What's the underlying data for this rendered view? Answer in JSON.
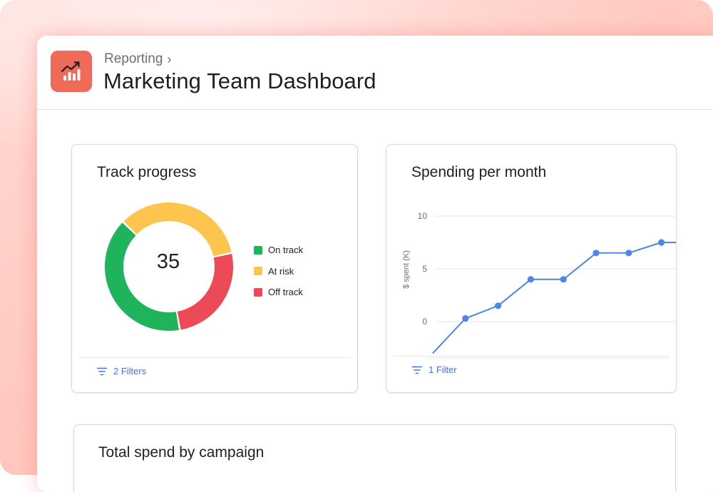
{
  "header": {
    "breadcrumb": "Reporting",
    "title": "Marketing Team Dashboard",
    "app_icon": "chart-trend-icon",
    "accent": "#f06a5a"
  },
  "track_progress": {
    "title": "Track progress",
    "total": "35",
    "filter_label": "2 Filters",
    "chart_data": {
      "type": "pie",
      "slices": [
        {
          "label": "On track",
          "color": "#1fb35b",
          "value": 14
        },
        {
          "label": "At risk",
          "color": "#fdc44e",
          "value": 12
        },
        {
          "label": "Off track",
          "color": "#ec4a57",
          "value": 9
        }
      ],
      "center_value": 35
    }
  },
  "spending": {
    "title": "Spending per month",
    "filter_label": "1 Filter",
    "chart_data": {
      "type": "line",
      "ylabel": "$ spent (K)",
      "yticks": [
        10,
        5,
        0
      ],
      "ylim": [
        -3,
        10
      ],
      "grid": true,
      "series": [
        {
          "color": "#4f86e6",
          "points": [
            [
              0,
              -3
            ],
            [
              1,
              0.3
            ],
            [
              2,
              1.5
            ],
            [
              3,
              4
            ],
            [
              4,
              4
            ],
            [
              5,
              6.5
            ],
            [
              6,
              6.5
            ],
            [
              7,
              7.5
            ],
            [
              7.7,
              7.5
            ]
          ]
        }
      ]
    }
  },
  "campaign": {
    "title": "Total spend by campaign"
  }
}
